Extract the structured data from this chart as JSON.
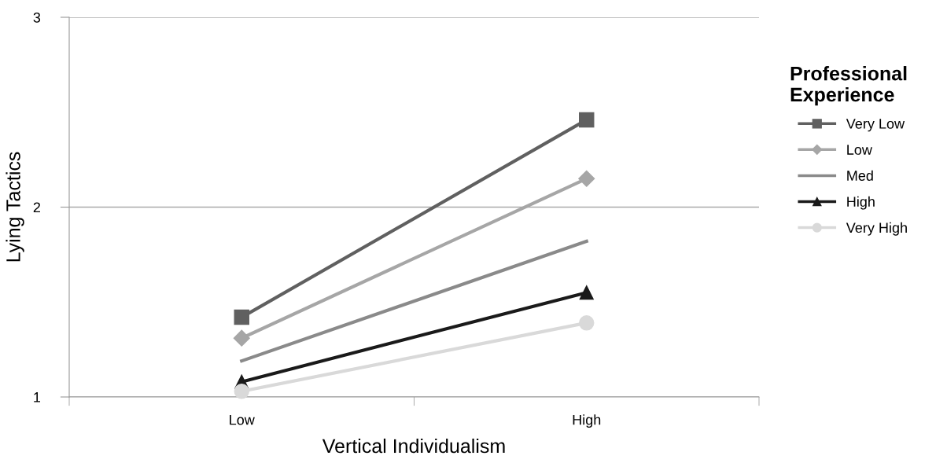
{
  "chart_data": {
    "type": "line",
    "xlabel": "Vertical Individualism",
    "ylabel": "Lying Tactics",
    "legend_title": "Professional\nExperience",
    "categories": [
      "Low",
      "High"
    ],
    "series": [
      {
        "name": "Very Low",
        "color": "#606060",
        "marker": "square",
        "values": [
          1.42,
          2.46
        ]
      },
      {
        "name": "Low",
        "color": "#a6a6a6",
        "marker": "diamond",
        "values": [
          1.31,
          2.15
        ]
      },
      {
        "name": "Med",
        "color": "#8a8a8a",
        "marker": "none",
        "values": [
          1.19,
          1.82
        ]
      },
      {
        "name": "High",
        "color": "#1a1a1a",
        "marker": "triangle",
        "values": [
          1.08,
          1.55
        ]
      },
      {
        "name": "Very High",
        "color": "#d9d9d9",
        "marker": "circle",
        "values": [
          1.03,
          1.39
        ]
      }
    ],
    "ylim": [
      1,
      3
    ],
    "yticks": [
      1,
      2,
      3
    ],
    "grid": "y",
    "legend": "right",
    "line_style": "solid"
  }
}
